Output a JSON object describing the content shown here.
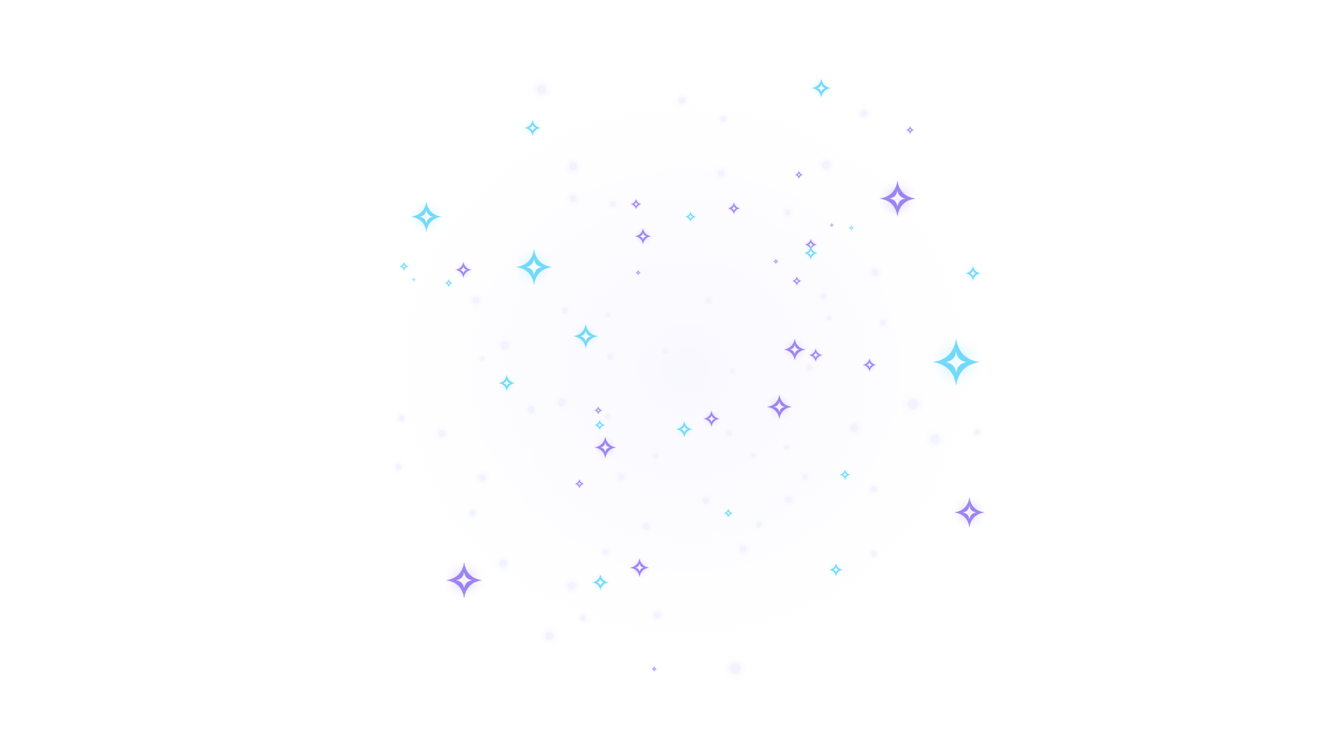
{
  "scene": {
    "description_hidden": "",
    "background": "#ffffff",
    "palette": {
      "blue": "#5fd3f7",
      "violet": "#8f72f0",
      "lavender": "#a99cf6",
      "glow": "#eef0ff"
    },
    "icon": "sparkle-star-icon"
  }
}
